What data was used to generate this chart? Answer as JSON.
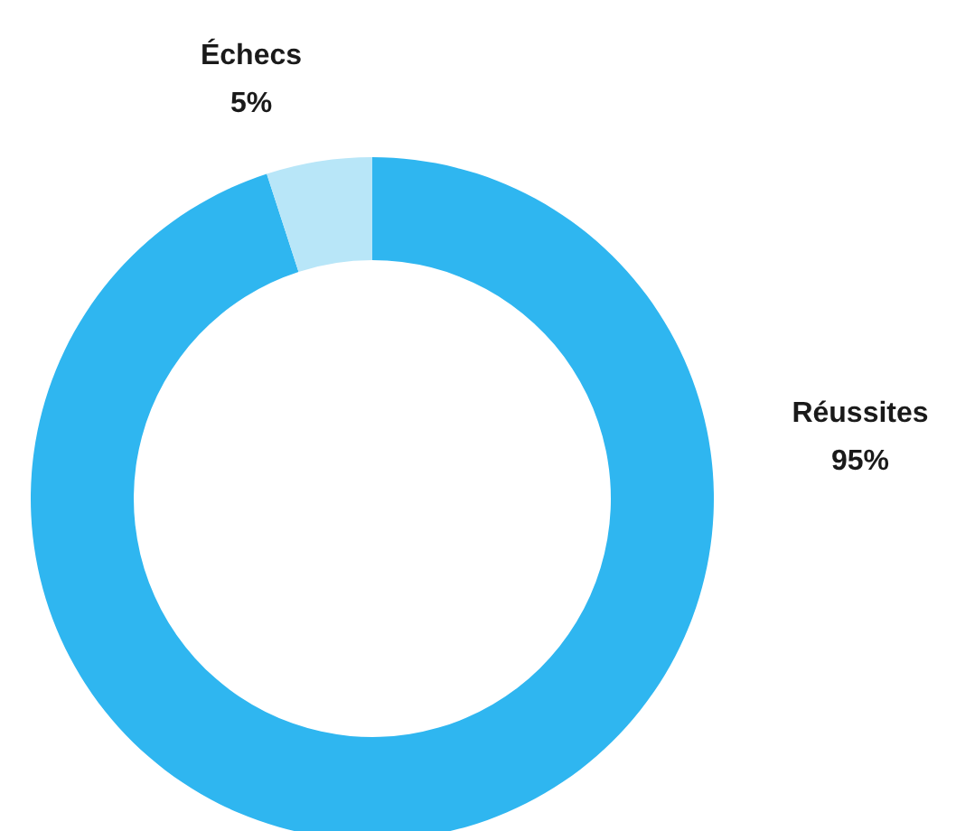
{
  "chart_data": {
    "type": "donut",
    "categories": [
      "Réussites",
      "Échecs"
    ],
    "values": [
      95,
      5
    ],
    "colors": [
      "#2fb6f0",
      "#b8e6f8"
    ],
    "value_labels": [
      "95%",
      "5%"
    ]
  }
}
